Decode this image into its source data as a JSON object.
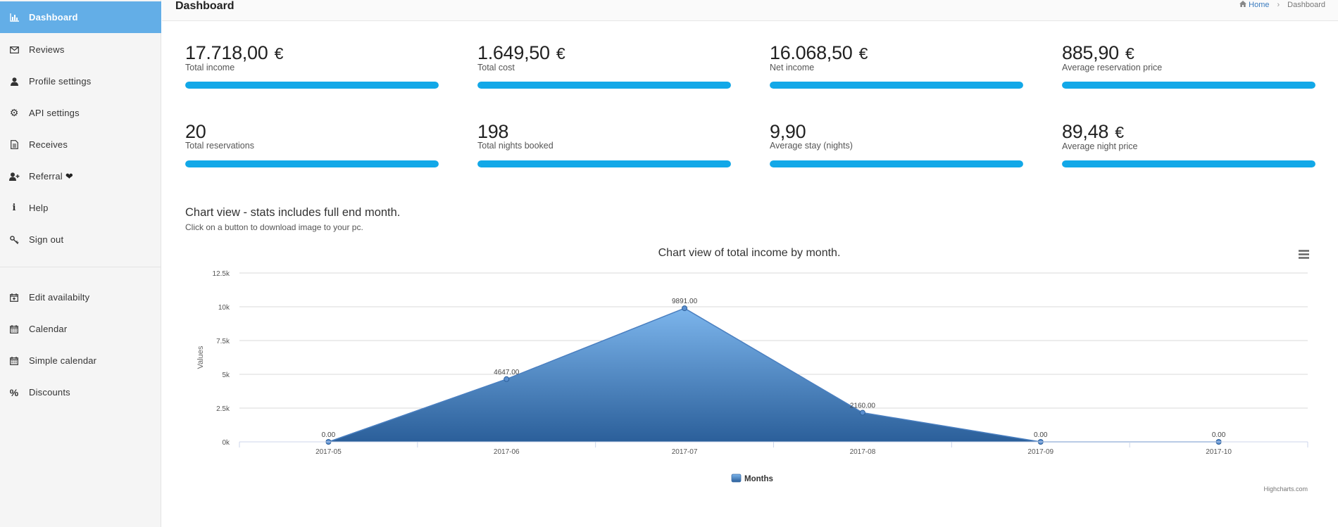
{
  "sidebar": {
    "items": [
      {
        "label": "Dashboard",
        "icon": "bar-chart-icon",
        "glyph": "📊",
        "active": true
      },
      {
        "label": "Reviews",
        "icon": "envelope-icon",
        "glyph": "✉"
      },
      {
        "label": "Profile settings",
        "icon": "user-icon",
        "glyph": "👤"
      },
      {
        "label": "API settings",
        "icon": "gear-icon",
        "glyph": "⚙"
      },
      {
        "label": "Receives",
        "icon": "document-icon",
        "glyph": "🗎"
      },
      {
        "label": "Referral",
        "icon": "user-plus-icon",
        "glyph": "👥"
      },
      {
        "label": "Help",
        "icon": "info-icon",
        "glyph": "ℹ"
      },
      {
        "label": "Sign out",
        "icon": "key-icon",
        "glyph": "🔑"
      },
      {
        "label": "Edit availabilty",
        "icon": "calendar-plus-icon",
        "glyph": "📅"
      },
      {
        "label": "Calendar",
        "icon": "calendar-icon",
        "glyph": "📅"
      },
      {
        "label": "Simple calendar",
        "icon": "calendar-icon",
        "glyph": "📅"
      },
      {
        "label": "Discounts",
        "icon": "percent-icon",
        "glyph": "%"
      }
    ]
  },
  "header": {
    "title": "Dashboard",
    "breadcrumb": {
      "home": "Home",
      "current": "Dashboard"
    }
  },
  "stats": [
    {
      "value": "17.718,00",
      "unit": "€",
      "label": "Total income",
      "progress": 1.0
    },
    {
      "value": "1.649,50",
      "unit": "€",
      "label": "Total cost",
      "progress": 1.0
    },
    {
      "value": "16.068,50",
      "unit": "€",
      "label": "Net income",
      "progress": 1.0
    },
    {
      "value": "885,90",
      "unit": "€",
      "label": "Average reservation price",
      "progress": 1.0
    },
    {
      "value": "20",
      "unit": "",
      "label": "Total reservations",
      "progress": 1.0
    },
    {
      "value": "198",
      "unit": "",
      "label": "Total nights booked",
      "progress": 1.0
    },
    {
      "value": "9,90",
      "unit": "",
      "label": "Average stay (nights)",
      "progress": 1.0
    },
    {
      "value": "89,48",
      "unit": "€",
      "label": "Average night price",
      "progress": 1.0
    }
  ],
  "chart_section": {
    "heading": "Chart view - stats includes full end month.",
    "subheading": "Click on a button to download image to your pc."
  },
  "colors": {
    "accent": "#63aee7",
    "progress": "#12a8e8",
    "area_top": "#7cb5ec",
    "area_bottom": "#2b5f9a"
  },
  "chart_data": {
    "type": "area",
    "title": "Chart view of total income by month.",
    "xlabel": "",
    "ylabel": "Values",
    "categories": [
      "2017-05",
      "2017-06",
      "2017-07",
      "2017-08",
      "2017-09",
      "2017-10"
    ],
    "series": [
      {
        "name": "Months",
        "values": [
          0,
          4647,
          9891,
          2160,
          0,
          0
        ],
        "data_labels": [
          "0.00",
          "4647.00",
          "9891.00",
          "2160.00",
          "0.00",
          "0.00"
        ]
      }
    ],
    "yticks": [
      "0k",
      "2.5k",
      "5k",
      "7.5k",
      "10k",
      "12.5k"
    ],
    "ylim": [
      0,
      12500
    ],
    "grid": true,
    "legend": "bottom-center",
    "credits": "Highcharts.com",
    "menu_icon": "hamburger-menu-icon"
  }
}
